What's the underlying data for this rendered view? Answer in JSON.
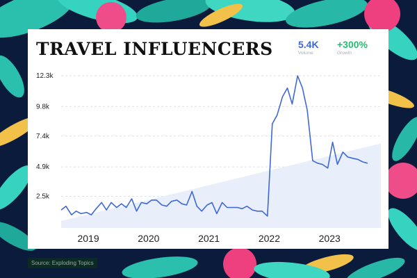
{
  "header": {
    "title": "TRAVEL INFLUENCERS",
    "volume_value": "5.4K",
    "volume_label": "Volume",
    "growth_value": "+300%",
    "growth_label": "Growth"
  },
  "footer": {
    "source": "Source: Exploding Topics"
  },
  "colors": {
    "line": "#3e67d8",
    "area_fill": "#e8eefa",
    "card": "#ffffff",
    "growth": "#2fb873",
    "volume": "#3e67d8"
  },
  "chart_data": {
    "type": "line",
    "title": "TRAVEL INFLUENCERS",
    "y_ticks": [
      2500,
      4900,
      7400,
      9800,
      12300
    ],
    "y_tick_labels": [
      "2.5k",
      "4.9k",
      "7.4k",
      "9.8k",
      "12.3k"
    ],
    "x_tick_labels": [
      "2019",
      "2020",
      "2021",
      "2022",
      "2023"
    ],
    "x_tick_values": [
      2019.0,
      2020.0,
      2021.0,
      2022.0,
      2023.0
    ],
    "xlim": [
      2018.55,
      2023.85
    ],
    "ylim": [
      500,
      12300
    ],
    "grid": true,
    "trend_area": {
      "start": [
        2018.55,
        500
      ],
      "end": [
        2023.85,
        6800
      ]
    },
    "series": [
      {
        "x": [
          2018.55,
          2018.63,
          2018.72,
          2018.8,
          2018.88,
          2018.97,
          2019.05,
          2019.13,
          2019.22,
          2019.3,
          2019.38,
          2019.47,
          2019.55,
          2019.63,
          2019.72,
          2019.8,
          2019.88,
          2019.97,
          2020.05,
          2020.13,
          2020.22,
          2020.3,
          2020.38,
          2020.47,
          2020.55,
          2020.63,
          2020.72,
          2020.8,
          2020.88,
          2020.97,
          2021.05,
          2021.13,
          2021.22,
          2021.3,
          2021.38,
          2021.47,
          2021.55,
          2021.63,
          2021.72,
          2021.8,
          2021.88,
          2021.97,
          2022.05,
          2022.13,
          2022.22,
          2022.3,
          2022.38,
          2022.47,
          2022.55,
          2022.63,
          2022.72,
          2022.8,
          2022.88,
          2022.97,
          2023.05,
          2023.13,
          2023.22,
          2023.3,
          2023.38,
          2023.47,
          2023.55,
          2023.63
        ],
        "values": [
          1400,
          1700,
          1000,
          1300,
          1100,
          1200,
          1000,
          1500,
          2000,
          1400,
          2000,
          1600,
          1900,
          1600,
          2300,
          1300,
          2000,
          1900,
          2200,
          2200,
          1800,
          1700,
          2100,
          2200,
          1900,
          1800,
          2900,
          1700,
          1300,
          1800,
          2000,
          1100,
          2000,
          1600,
          1600,
          1600,
          1500,
          1700,
          1400,
          1300,
          1300,
          900,
          8400,
          9100,
          10600,
          11300,
          10000,
          12300,
          11300,
          9500,
          5400,
          5200,
          5100,
          4800,
          6900,
          5100,
          6100,
          5700,
          5600,
          5500,
          5300,
          5200
        ]
      }
    ]
  }
}
